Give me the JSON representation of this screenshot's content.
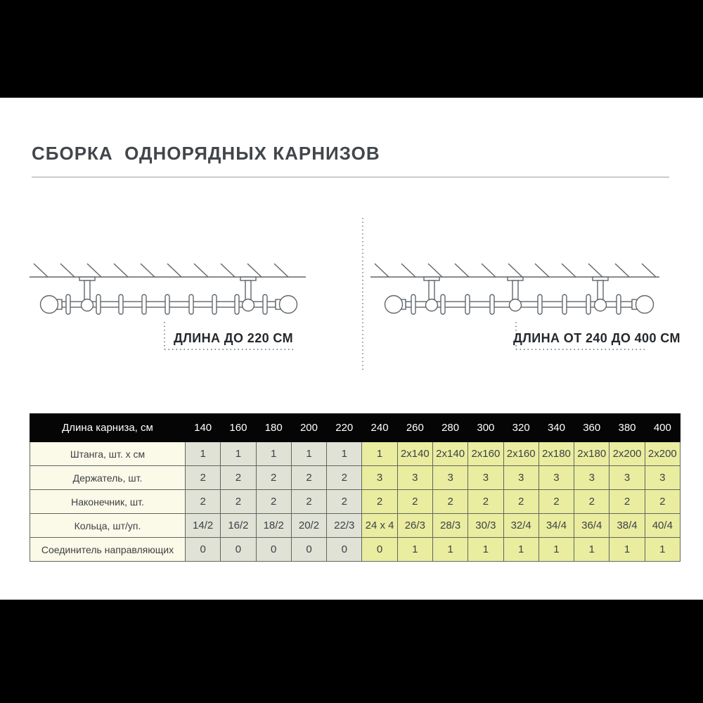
{
  "page": {
    "title": "СБОРКА  ОДНОРЯДНЫХ КАРНИЗОВ"
  },
  "diagrams": {
    "left_label": "ДЛИНА ДО 220 СМ",
    "right_label": "ДЛИНА ОТ 240 ДО 400 СМ"
  },
  "table": {
    "header_label": "Длина карниза, см",
    "columns": [
      "140",
      "160",
      "180",
      "200",
      "220",
      "240",
      "260",
      "280",
      "300",
      "320",
      "340",
      "360",
      "380",
      "400"
    ],
    "rows": [
      {
        "label": "Штанга, шт. х см",
        "values": [
          "1",
          "1",
          "1",
          "1",
          "1",
          "1",
          "2x140",
          "2x140",
          "2x160",
          "2x160",
          "2x180",
          "2x180",
          "2x200",
          "2x200"
        ]
      },
      {
        "label": "Держатель, шт.",
        "values": [
          "2",
          "2",
          "2",
          "2",
          "2",
          "3",
          "3",
          "3",
          "3",
          "3",
          "3",
          "3",
          "3",
          "3"
        ]
      },
      {
        "label": "Наконечник, шт.",
        "values": [
          "2",
          "2",
          "2",
          "2",
          "2",
          "2",
          "2",
          "2",
          "2",
          "2",
          "2",
          "2",
          "2",
          "2"
        ]
      },
      {
        "label": "Кольца, шт/уп.",
        "values": [
          "14/2",
          "16/2",
          "18/2",
          "20/2",
          "22/3",
          "24 x 4",
          "26/3",
          "28/3",
          "30/3",
          "32/4",
          "34/4",
          "36/4",
          "38/4",
          "40/4"
        ]
      },
      {
        "label": "Соединитель направляющих",
        "values": [
          "0",
          "0",
          "0",
          "0",
          "0",
          "0",
          "1",
          "1",
          "1",
          "1",
          "1",
          "1",
          "1",
          "1"
        ]
      }
    ],
    "gray_columns_count": 5
  },
  "colors": {
    "header_bg": "#050505",
    "label_column_bg": "#fbf9e8",
    "short_length_cell_bg": "#dfe2d5",
    "long_length_cell_bg": "#eaed9f",
    "diagram_stroke": "#60666b"
  }
}
